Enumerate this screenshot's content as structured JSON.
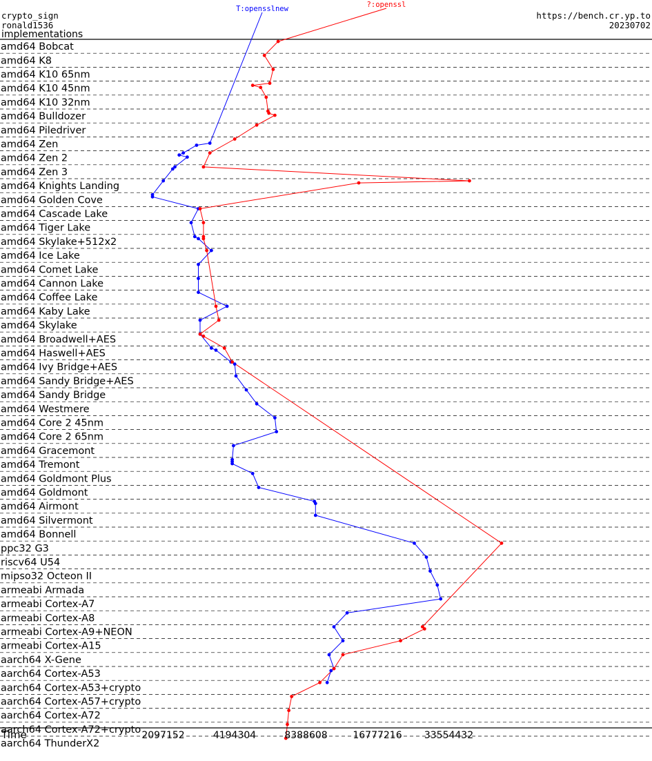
{
  "header": {
    "left_line1": "crypto_sign",
    "left_line2": "ronald1536",
    "left_line3": "implementations",
    "right_line1": "https://bench.cr.yp.to",
    "right_line2": "20230702"
  },
  "colors": {
    "blue": "#0000ff",
    "red": "#ff0000",
    "rule": "#000000"
  },
  "chart_data": {
    "type": "line",
    "xlabel": "Time",
    "x_scale": "log2",
    "x_ticks": [
      2097152,
      4194304,
      8388608,
      16777216,
      33554432
    ],
    "categories": [
      "amd64 Bobcat",
      "amd64 K8",
      "amd64 K10 65nm",
      "amd64 K10 45nm",
      "amd64 K10 32nm",
      "amd64 Bulldozer",
      "amd64 Piledriver",
      "amd64 Zen",
      "amd64 Zen 2",
      "amd64 Zen 3",
      "amd64 Knights Landing",
      "amd64 Golden Cove",
      "amd64 Cascade Lake",
      "amd64 Tiger Lake",
      "amd64 Skylake+512x2",
      "amd64 Ice Lake",
      "amd64 Comet Lake",
      "amd64 Cannon Lake",
      "amd64 Coffee Lake",
      "amd64 Kaby Lake",
      "amd64 Skylake",
      "amd64 Broadwell+AES",
      "amd64 Haswell+AES",
      "amd64 Ivy Bridge+AES",
      "amd64 Sandy Bridge+AES",
      "amd64 Sandy Bridge",
      "amd64 Westmere",
      "amd64 Core 2 45nm",
      "amd64 Core 2 65nm",
      "amd64 Gracemont",
      "amd64 Tremont",
      "amd64 Goldmont Plus",
      "amd64 Goldmont",
      "amd64 Airmont",
      "amd64 Silvermont",
      "amd64 Bonnell",
      "ppc32 G3",
      "riscv64 U54",
      "mipso32 Octeon II",
      "armeabi Armada",
      "armeabi Cortex-A7",
      "armeabi Cortex-A8",
      "armeabi Cortex-A9+NEON",
      "armeabi Cortex-A15",
      "aarch64 X-Gene",
      "aarch64 Cortex-A53",
      "aarch64 Cortex-A53+crypto",
      "aarch64 Cortex-A57+crypto",
      "aarch64 Cortex-A72",
      "aarch64 Cortex-A72+crypto",
      "aarch64 ThunderX2"
    ],
    "series": [
      {
        "name": "T:opensslnew",
        "color": "#0000ff",
        "points": [
          [
            7,
            2,
            3300000
          ],
          [
            7,
            3,
            2900000
          ],
          [
            8,
            0,
            2550000
          ],
          [
            8,
            1,
            2450000
          ],
          [
            8,
            2,
            2650000
          ],
          [
            9,
            0,
            2350000
          ],
          [
            9,
            1,
            2300000
          ],
          [
            10,
            0,
            2100000
          ],
          [
            11,
            0,
            1890000
          ],
          [
            11,
            1,
            1890000
          ],
          [
            12,
            0,
            2950000
          ],
          [
            13,
            0,
            2750000
          ],
          [
            14,
            0,
            2850000
          ],
          [
            14,
            1,
            2950000
          ],
          [
            15,
            0,
            3350000
          ],
          [
            16,
            0,
            2950000
          ],
          [
            17,
            0,
            2950000
          ],
          [
            18,
            0,
            2950000
          ],
          [
            19,
            0,
            3900000
          ],
          [
            20,
            0,
            3000000
          ],
          [
            21,
            0,
            3000000
          ],
          [
            22,
            0,
            3350000
          ],
          [
            22,
            1,
            3500000
          ],
          [
            23,
            0,
            4050000
          ],
          [
            23,
            1,
            4200000
          ],
          [
            24,
            0,
            4250000
          ],
          [
            25,
            0,
            4700000
          ],
          [
            26,
            0,
            5200000
          ],
          [
            27,
            0,
            6200000
          ],
          [
            28,
            0,
            6300000
          ],
          [
            29,
            0,
            4150000
          ],
          [
            30,
            0,
            4100000
          ],
          [
            30,
            1,
            4100000
          ],
          [
            30,
            2,
            4100000
          ],
          [
            31,
            0,
            5000000
          ],
          [
            32,
            0,
            5300000
          ],
          [
            33,
            0,
            9100000
          ],
          [
            33,
            1,
            9200000
          ],
          [
            34,
            0,
            9200000
          ],
          [
            36,
            0,
            24000000
          ],
          [
            37,
            0,
            27000000
          ],
          [
            38,
            0,
            28000000
          ],
          [
            39,
            0,
            30000000
          ],
          [
            40,
            0,
            31000000
          ],
          [
            41,
            0,
            12500000
          ],
          [
            42,
            0,
            11000000
          ],
          [
            43,
            0,
            12000000
          ],
          [
            44,
            0,
            10500000
          ],
          [
            45,
            0,
            11000000
          ],
          [
            45,
            1,
            10700000
          ],
          [
            46,
            0,
            10300000
          ]
        ]
      },
      {
        "name": "?:openssl",
        "color": "#ff0000",
        "points": [
          [
            0,
            0,
            6400000
          ],
          [
            1,
            0,
            5600000
          ],
          [
            2,
            0,
            6100000
          ],
          [
            3,
            0,
            5900000
          ],
          [
            3,
            1,
            5000000
          ],
          [
            3,
            2,
            5400000
          ],
          [
            4,
            0,
            5700000
          ],
          [
            5,
            0,
            5800000
          ],
          [
            5,
            1,
            5850000
          ],
          [
            5,
            2,
            6200000
          ],
          [
            6,
            0,
            5200000
          ],
          [
            7,
            0,
            4200000
          ],
          [
            8,
            0,
            3300000
          ],
          [
            9,
            0,
            3100000
          ],
          [
            10,
            0,
            41000000
          ],
          [
            10,
            1,
            14000000
          ],
          [
            12,
            0,
            3000000
          ],
          [
            13,
            0,
            3100000
          ],
          [
            14,
            0,
            3100000
          ],
          [
            14,
            1,
            3100000
          ],
          [
            15,
            0,
            3200000
          ],
          [
            19,
            0,
            3500000
          ],
          [
            20,
            0,
            3600000
          ],
          [
            21,
            0,
            3000000
          ],
          [
            21,
            1,
            3100000
          ],
          [
            22,
            0,
            3800000
          ],
          [
            23,
            0,
            4100000
          ],
          [
            36,
            0,
            56000000
          ],
          [
            42,
            0,
            26000000
          ],
          [
            42,
            1,
            26500000
          ],
          [
            43,
            0,
            21000000
          ],
          [
            44,
            0,
            12000000
          ],
          [
            45,
            0,
            11000000
          ],
          [
            46,
            0,
            9600000
          ],
          [
            47,
            0,
            7300000
          ],
          [
            48,
            0,
            7100000
          ],
          [
            49,
            0,
            7000000
          ],
          [
            50,
            0,
            6900000
          ]
        ]
      }
    ]
  }
}
